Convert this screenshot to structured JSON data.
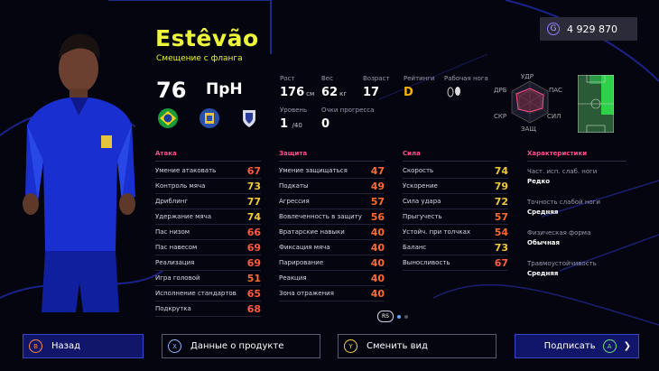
{
  "currency": {
    "value": "4 929 870",
    "icon": "gp-coin-icon"
  },
  "player": {
    "name": "Estêvão",
    "position_desc": "Смещение с фланга",
    "overall": "76",
    "position": "ПрН"
  },
  "info": {
    "height_label": "Рост",
    "height_value": "176",
    "height_unit": "см",
    "weight_label": "Вес",
    "weight_value": "62",
    "weight_unit": "кг",
    "age_label": "Возраст",
    "age_value": "17",
    "rating_label": "Рейтинги",
    "rating_value": "D",
    "foot_label": "Рабочая нога",
    "level_label": "Уровень",
    "level_value": "1",
    "level_max": "/40",
    "progress_label": "Очки прогресса",
    "progress_value": "0"
  },
  "radar": {
    "labels": [
      "УДР",
      "ПАС",
      "СИЛ",
      "ЗАЩ",
      "СКР",
      "ДРБ"
    ]
  },
  "attack": {
    "title": "Атака",
    "rows": [
      {
        "label": "Умение атаковать",
        "value": "67"
      },
      {
        "label": "Контроль мяча",
        "value": "73"
      },
      {
        "label": "Дриблинг",
        "value": "77"
      },
      {
        "label": "Удержание мяча",
        "value": "74"
      },
      {
        "label": "Пас низом",
        "value": "66"
      },
      {
        "label": "Пас навесом",
        "value": "69"
      },
      {
        "label": "Реализация",
        "value": "69"
      },
      {
        "label": "Игра головой",
        "value": "51"
      },
      {
        "label": "Исполнение стандартов",
        "value": "65"
      },
      {
        "label": "Подкрутка",
        "value": "68"
      }
    ]
  },
  "defense": {
    "title": "Защита",
    "rows": [
      {
        "label": "Умение защищаться",
        "value": "47"
      },
      {
        "label": "Подкаты",
        "value": "49"
      },
      {
        "label": "Агрессия",
        "value": "57"
      },
      {
        "label": "Вовлеченность в защиту",
        "value": "56"
      },
      {
        "label": "Вратарские навыки",
        "value": "40"
      },
      {
        "label": "Фиксация мяча",
        "value": "40"
      },
      {
        "label": "Парирование",
        "value": "40"
      },
      {
        "label": "Реакция",
        "value": "40"
      },
      {
        "label": "Зона отражения",
        "value": "40"
      }
    ]
  },
  "power": {
    "title": "Сила",
    "rows": [
      {
        "label": "Скорость",
        "value": "74"
      },
      {
        "label": "Ускорение",
        "value": "79"
      },
      {
        "label": "Сила удара",
        "value": "72"
      },
      {
        "label": "Прыгучесть",
        "value": "57"
      },
      {
        "label": "Устойч. при толчках",
        "value": "54"
      },
      {
        "label": "Баланс",
        "value": "73"
      },
      {
        "label": "Выносливость",
        "value": "67"
      }
    ]
  },
  "characteristics": {
    "title": "Характеристики",
    "items": [
      {
        "label": "Част. исп. слаб. ноги",
        "value": "Редко"
      },
      {
        "label": "Точность слабой ноги",
        "value": "Средняя"
      },
      {
        "label": "Физическая форма",
        "value": "Обычная"
      },
      {
        "label": "Травмоустойчивость",
        "value": "Средняя"
      }
    ]
  },
  "pager": {
    "label": "RS"
  },
  "buttons": {
    "back": {
      "key": "B",
      "label": "Назад"
    },
    "info": {
      "key": "X",
      "label": "Данные о продукте"
    },
    "view": {
      "key": "Y",
      "label": "Сменить вид"
    },
    "sign": {
      "key": "A",
      "label": "Подписать"
    }
  },
  "colors": {
    "accent_yellow": "#ecf53a",
    "header_pink": "#ff4f8a",
    "stat_red": "#ff5a3c",
    "stat_yellow": "#f3c83b",
    "button_blue": "#12166b"
  }
}
